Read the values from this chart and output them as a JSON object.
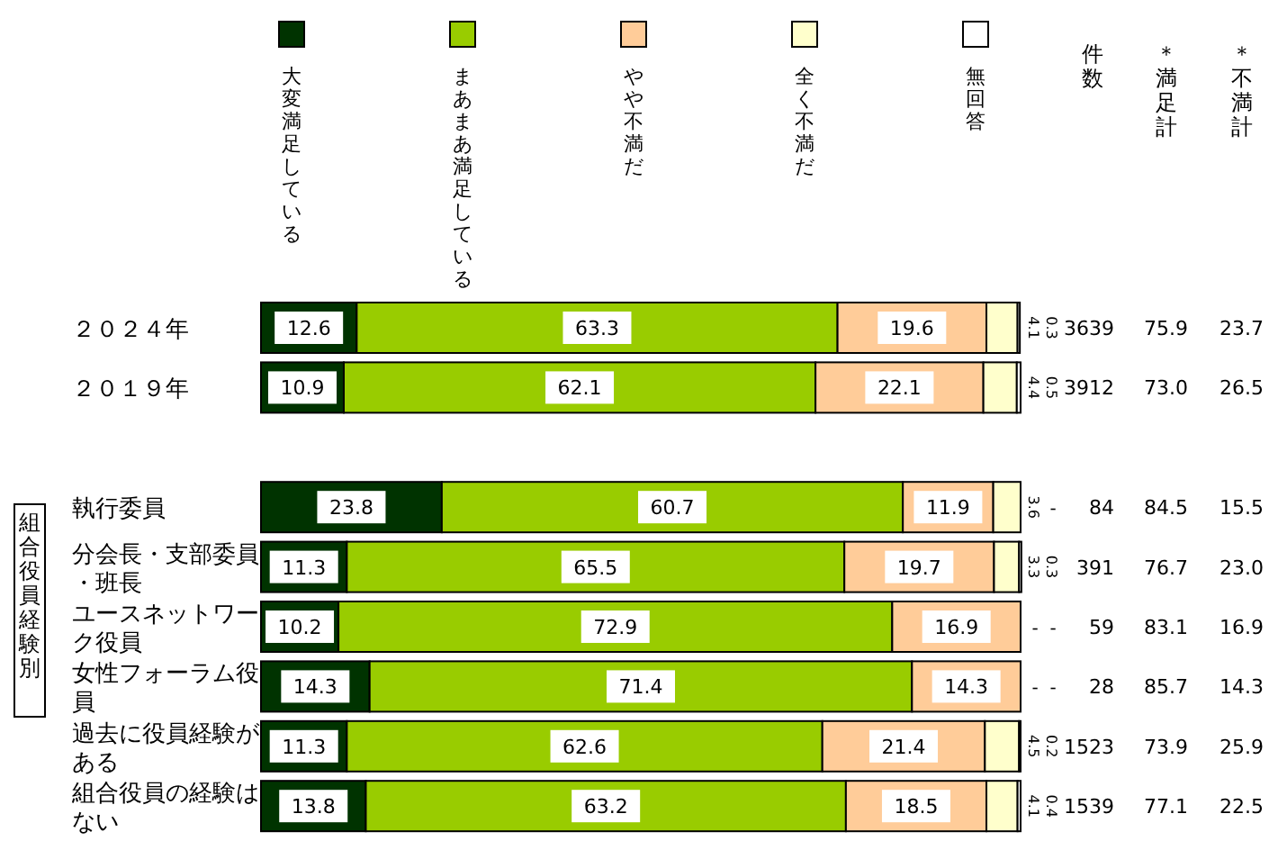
{
  "chart_data": {
    "type": "bar",
    "orientation": "horizontal",
    "stacked": true,
    "legend": "top",
    "tick_labels": "y",
    "xlim": [
      0,
      100
    ],
    "categories": [
      "２０２４年",
      "２０１９年",
      null,
      "執行委員",
      "分会長・支部委員・班長",
      "ユースネットワーク役員",
      "女性フォーラム役員",
      "過去に役員経験がある",
      "組合役員の経験はない"
    ],
    "series": [
      {
        "name": "大変満足している",
        "color": "#003300",
        "values": [
          12.6,
          10.9,
          null,
          23.8,
          11.3,
          10.2,
          14.3,
          11.3,
          13.8
        ],
        "value_labels": [
          "12.6",
          "10.9",
          null,
          "23.8",
          "11.3",
          "10.2",
          "14.3",
          "11.3",
          "13.8"
        ]
      },
      {
        "name": "まあまあ満足している",
        "color": "#99cc00",
        "values": [
          63.3,
          62.1,
          null,
          60.7,
          65.5,
          72.9,
          71.4,
          62.6,
          63.2
        ],
        "value_labels": [
          "63.3",
          "62.1",
          null,
          "60.7",
          "65.5",
          "72.9",
          "71.4",
          "62.6",
          "63.2"
        ]
      },
      {
        "name": "やや不満だ",
        "color": "#ffcc99",
        "values": [
          19.6,
          22.1,
          null,
          11.9,
          19.7,
          16.9,
          14.3,
          21.4,
          18.5
        ],
        "value_labels": [
          "19.6",
          "22.1",
          null,
          "11.9",
          "19.7",
          "16.9",
          "14.3",
          "21.4",
          "18.5"
        ]
      },
      {
        "name": "全く不満だ",
        "color": "#ffffcc",
        "values": [
          4.1,
          4.4,
          null,
          3.6,
          3.3,
          0,
          0,
          4.5,
          4.1
        ],
        "value_labels": [
          "4.1",
          "4.4",
          null,
          "3.6",
          "3.3",
          "-",
          "-",
          "4.5",
          "4.1"
        ]
      },
      {
        "name": "無回答",
        "color": "#ffffff",
        "values": [
          0.3,
          0.5,
          null,
          0,
          0.3,
          0,
          0,
          0.2,
          0.4
        ],
        "value_labels": [
          "0.3",
          "0.5",
          null,
          "-",
          "0.3",
          "-",
          "-",
          "0.2",
          "0.4"
        ]
      }
    ],
    "annotations": [
      "組合役員経験別",
      "件数",
      "＊満足計",
      "＊不満計",
      "3639",
      "75.9",
      "23.7",
      "3912",
      "73.0",
      "26.5",
      "84",
      "84.5",
      "15.5",
      "391",
      "76.7",
      "23.0",
      "59",
      "83.1",
      "16.9",
      "28",
      "85.7",
      "14.3",
      "1523",
      "73.9",
      "25.9",
      "1539",
      "77.1",
      "22.5"
    ]
  }
}
